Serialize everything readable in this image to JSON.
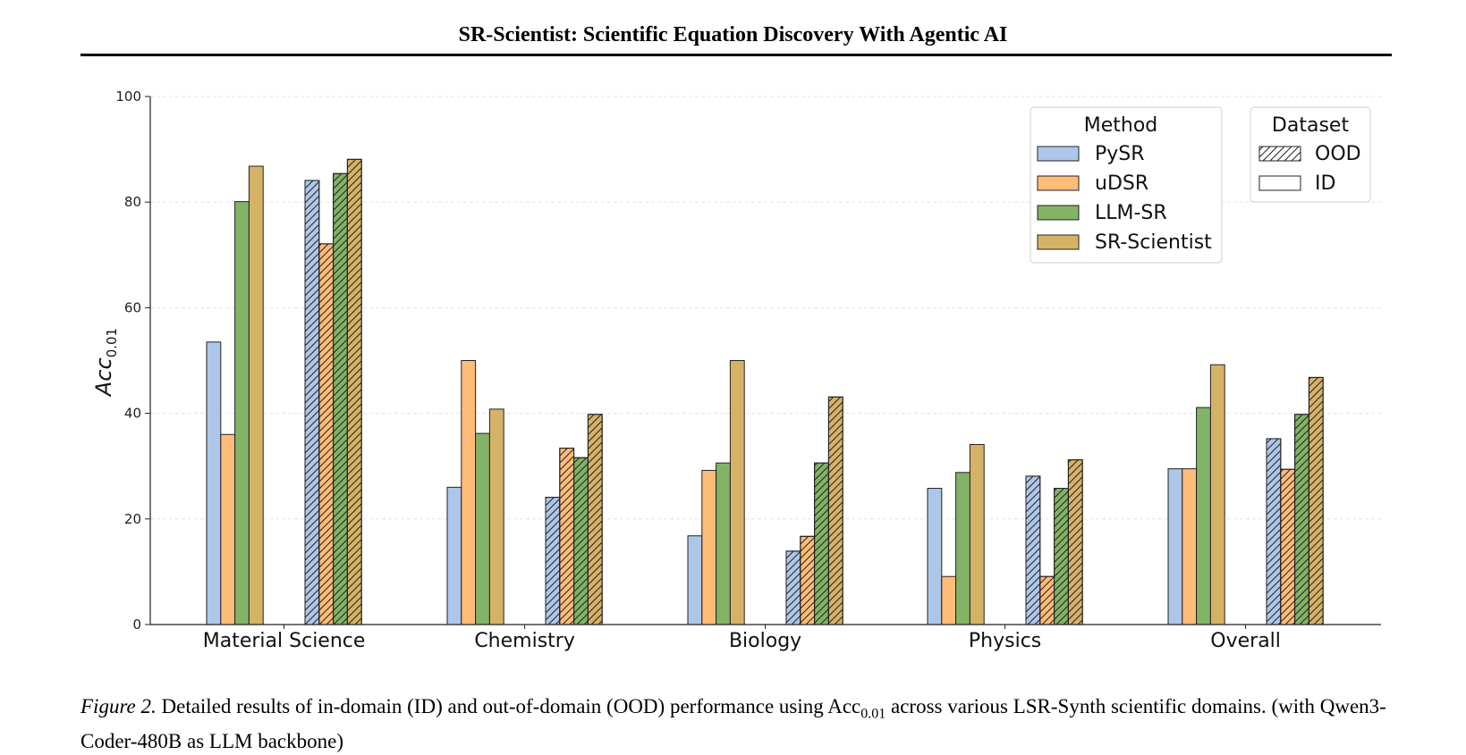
{
  "header": {
    "title": "SR-Scientist: Scientific Equation Discovery With Agentic AI"
  },
  "caption": {
    "label": "Figure 2.",
    "text_before": "Detailed results of in-domain (ID) and out-of-domain (OOD) performance using Acc",
    "metric_subscript": "0.01",
    "text_after": " across various LSR-Synth scientific domains. (with Qwen3-Coder-480B as LLM backbone)"
  },
  "chart_data": {
    "type": "bar",
    "ylabel": "Acc",
    "ylabel_subscript": "0.01",
    "ylim": [
      0,
      100
    ],
    "yticks": [
      0,
      20,
      40,
      60,
      80,
      100
    ],
    "grid": "horizontal dashed",
    "categories": [
      "Material Science",
      "Chemistry",
      "Biology",
      "Physics",
      "Overall"
    ],
    "legend_method": {
      "title": "Method",
      "placement": "top-right",
      "entries": [
        "PySR",
        "uDSR",
        "LLM-SR",
        "SR-Scientist"
      ]
    },
    "legend_dataset": {
      "title": "Dataset",
      "placement": "top-right",
      "entries": [
        "OOD",
        "ID"
      ]
    },
    "colors": {
      "PySR": "#aec7e8",
      "uDSR": "#ffbb78",
      "LLM-SR": "#82b366",
      "SR-Scientist": "#d6b266"
    },
    "series": [
      {
        "name": "PySR",
        "dataset": "ID",
        "values": [
          53.5,
          26,
          16.8,
          25.8,
          29.5
        ]
      },
      {
        "name": "uDSR",
        "dataset": "ID",
        "values": [
          36,
          50,
          29.2,
          9.1,
          29.5
        ]
      },
      {
        "name": "LLM-SR",
        "dataset": "ID",
        "values": [
          80.1,
          36.2,
          30.6,
          28.8,
          41.1
        ]
      },
      {
        "name": "SR-Scientist",
        "dataset": "ID",
        "values": [
          86.8,
          40.8,
          50,
          34.1,
          49.2
        ]
      },
      {
        "name": "PySR",
        "dataset": "OOD",
        "values": [
          84.1,
          24.1,
          13.9,
          28.1,
          35.2
        ]
      },
      {
        "name": "uDSR",
        "dataset": "OOD",
        "values": [
          72.1,
          33.4,
          16.7,
          9.1,
          29.4
        ]
      },
      {
        "name": "LLM-SR",
        "dataset": "OOD",
        "values": [
          85.4,
          31.6,
          30.6,
          25.8,
          39.8
        ]
      },
      {
        "name": "SR-Scientist",
        "dataset": "OOD",
        "values": [
          88.1,
          39.8,
          43.1,
          31.2,
          46.8
        ]
      }
    ]
  }
}
